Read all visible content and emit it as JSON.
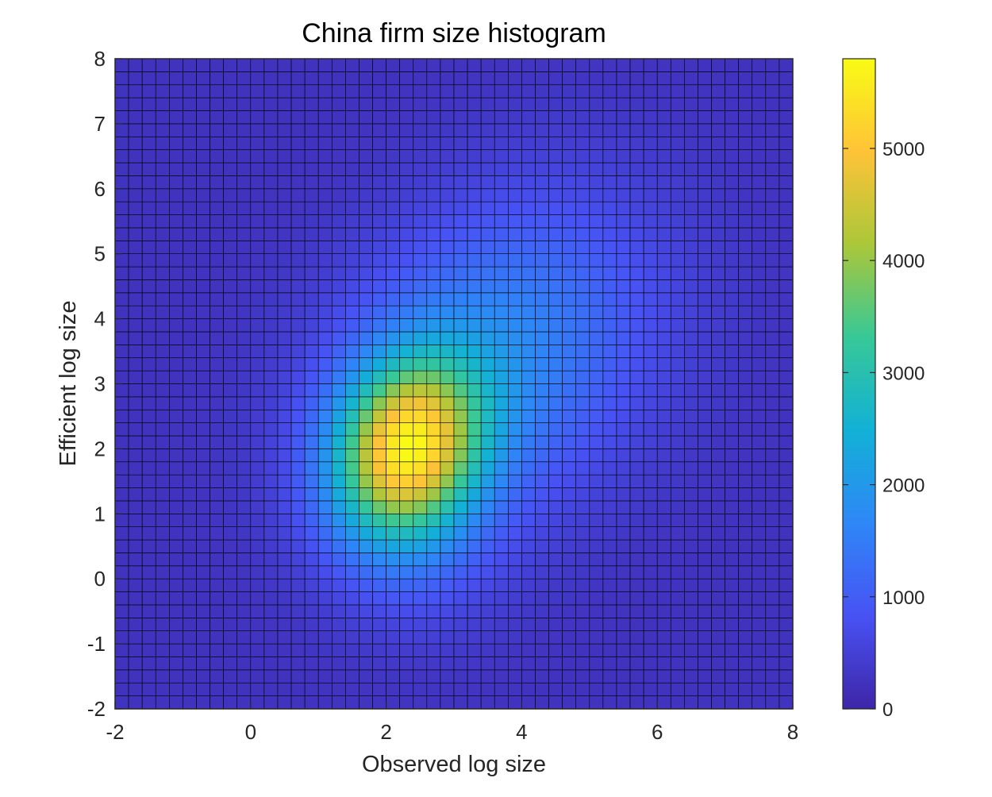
{
  "chart_data": {
    "type": "heatmap",
    "title": "China firm size histogram",
    "xlabel": "Observed log size",
    "ylabel": "Efficient log size",
    "xlim": [
      -2,
      8
    ],
    "ylim": [
      -2,
      8
    ],
    "x_ticks": [
      "-2",
      "0",
      "2",
      "4",
      "6",
      "8"
    ],
    "y_ticks": [
      "-2",
      "-1",
      "0",
      "1",
      "2",
      "3",
      "4",
      "5",
      "6",
      "7",
      "8"
    ],
    "colorbar": {
      "range": [
        0,
        5800
      ],
      "ticks": [
        "0",
        "1000",
        "2000",
        "3000",
        "4000",
        "5000"
      ],
      "colormap": "parula",
      "placement": "right"
    },
    "grid": true,
    "bins": {
      "x_count": 50,
      "y_count": 50,
      "x_width": 0.2,
      "y_width": 0.2
    },
    "distribution": {
      "peak": {
        "x": 2.3,
        "y": 2.0,
        "count": 5800
      },
      "components": [
        {
          "x": 2.3,
          "y": 2.0,
          "count": 5000,
          "sx": 0.75,
          "sy": 0.95,
          "rho": 0.15
        },
        {
          "x": 3.6,
          "y": 3.4,
          "count": 1600,
          "sx": 1.6,
          "sy": 1.7,
          "rho": 0.25
        },
        {
          "x": 2.5,
          "y": 0.5,
          "count": 500,
          "sx": 0.9,
          "sy": 1.0,
          "rho": 0.0
        }
      ],
      "background": 250
    }
  }
}
